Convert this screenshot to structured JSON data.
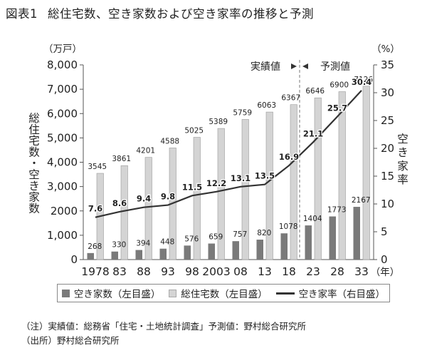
{
  "title": {
    "figure": "図表1",
    "text": "総住宅数、空き家数および空き家率の推移と予測"
  },
  "legend": {
    "vacant_houses": "空き家数（左目盛）",
    "total_houses": "総住宅数（左目盛）",
    "vacancy_rate": "空き家率（右目盛）"
  },
  "notes": {
    "note": "（注）実績値：総務省「住宅・土地統計調査」予測値：野村総合研究所",
    "source": "（出所）野村総合研究所"
  },
  "colors": {
    "total": "#d4d4d4",
    "vacant": "#7a7a7a",
    "line": "#333333"
  },
  "chart_data": {
    "type": "bar+line",
    "categories": [
      "1978",
      "83",
      "88",
      "93",
      "98",
      "2003",
      "08",
      "13",
      "18",
      "23",
      "28",
      "33"
    ],
    "series": [
      {
        "name": "総住宅数（左目盛）",
        "axis": "left",
        "values": [
          3545,
          3861,
          4201,
          4588,
          5025,
          5389,
          5759,
          6063,
          6367,
          6646,
          6900,
          7126
        ]
      },
      {
        "name": "空き家数（左目盛）",
        "axis": "left",
        "values": [
          268,
          330,
          394,
          448,
          576,
          659,
          757,
          820,
          1078,
          1404,
          1773,
          2167
        ]
      },
      {
        "name": "空き家率（右目盛）",
        "axis": "right",
        "values": [
          7.6,
          8.6,
          9.4,
          9.8,
          11.5,
          12.2,
          13.1,
          13.5,
          16.9,
          21.1,
          25.7,
          30.4
        ]
      }
    ],
    "y_left": {
      "unit": "（万戸）",
      "label": "総住宅数・空き家数",
      "lim": [
        0,
        8000
      ],
      "ticks": [
        0,
        1000,
        2000,
        3000,
        4000,
        5000,
        6000,
        7000,
        8000
      ],
      "tick_labels": [
        "0",
        "1,000",
        "2000",
        "3,000",
        "4,000",
        "5,000",
        "6,000",
        "7,000",
        "8,000"
      ]
    },
    "y_right": {
      "unit": "（%）",
      "label": "空き家率",
      "lim": [
        0,
        35
      ],
      "ticks": [
        0,
        5,
        10,
        15,
        20,
        25,
        30,
        35
      ],
      "tick_labels": [
        "0",
        "5",
        "10",
        "15",
        "20",
        "25",
        "30",
        "35"
      ]
    },
    "x_unit": "（年）",
    "annotations": {
      "actual": "実績値",
      "forecast": "予測値",
      "forecast_start_index": 9
    }
  }
}
